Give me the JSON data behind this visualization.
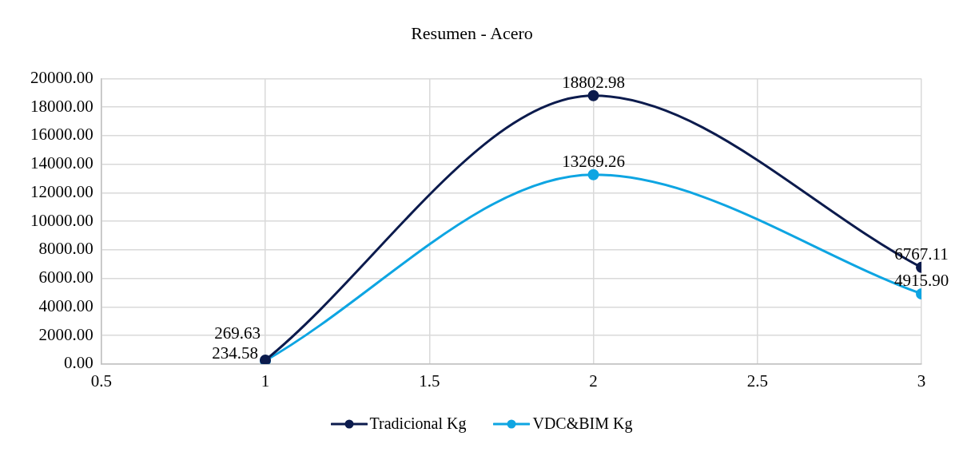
{
  "chart_data": {
    "type": "line",
    "title": "Resumen - Acero",
    "x": [
      1,
      2,
      3
    ],
    "series": [
      {
        "name": "Tradicional Kg",
        "color": "#0c1b4d",
        "values": [
          269.63,
          18802.98,
          6767.11
        ],
        "value_labels": [
          "269.63",
          "18802.98",
          "6767.11"
        ]
      },
      {
        "name": "VDC&BIM Kg",
        "color": "#0ea5e2",
        "values": [
          234.58,
          13269.26,
          4915.9
        ],
        "value_labels": [
          "234.58",
          "13269.26",
          "4915.90"
        ]
      }
    ],
    "xlim": [
      0.5,
      3
    ],
    "xticks": [
      0.5,
      1,
      1.5,
      2,
      2.5,
      3
    ],
    "ylim": [
      0,
      20000
    ],
    "yticks": [
      {
        "value": 0,
        "label": "0.00"
      },
      {
        "value": 2000,
        "label": "2000.00"
      },
      {
        "value": 4000,
        "label": "4000.00"
      },
      {
        "value": 6000,
        "label": "6000.00"
      },
      {
        "value": 8000,
        "label": "8000.00"
      },
      {
        "value": 10000,
        "label": "10000.00"
      },
      {
        "value": 12000,
        "label": "12000.00"
      },
      {
        "value": 14000,
        "label": "14000.00"
      },
      {
        "value": 16000,
        "label": "16000.00"
      },
      {
        "value": 18000,
        "label": "18000.00"
      },
      {
        "value": 20000,
        "label": "20000.00"
      }
    ],
    "grid": true,
    "legend": "bottom",
    "marker": "circle"
  }
}
